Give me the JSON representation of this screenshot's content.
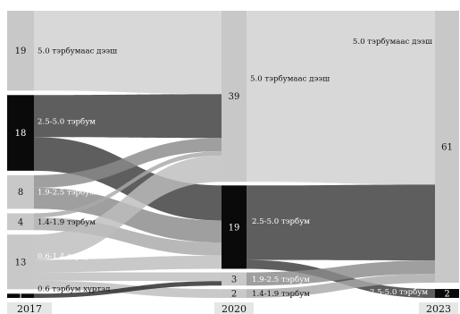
{
  "chart_data": {
    "type": "sankey",
    "title": "",
    "columns": [
      {
        "year": "2017",
        "nodes": [
          {
            "value": 19,
            "label": "5.0 тэрбумаас дээш"
          },
          {
            "value": 18,
            "label": "2.5-5.0 тэрбум"
          },
          {
            "value": 8,
            "label": "1.9-2.5 тэрбум"
          },
          {
            "value": 4,
            "label": "1.4-1.9 тэрбум"
          },
          {
            "value": 13,
            "label": "0.6-1.4 тэрбум"
          },
          {
            "value": 1,
            "label": "0.6 тэрбум хүртэл"
          }
        ]
      },
      {
        "year": "2020",
        "nodes": [
          {
            "value": 39,
            "label": "5.0 тэрбумаас дээш"
          },
          {
            "value": 19,
            "label": "2.5-5.0 тэрбум"
          },
          {
            "value": 3,
            "label": "1.9-2.5 тэрбум"
          },
          {
            "value": 2,
            "label": "1.4-1.9 тэрбум"
          }
        ]
      },
      {
        "year": "2023",
        "nodes": [
          {
            "value": 61,
            "label": "5.0 тэрбумаас дээш"
          },
          {
            "value": 2,
            "label": "2.5-5.0 тэрбум"
          }
        ]
      }
    ],
    "flows_2017_2020": [
      {
        "from": "5.0 тэрбумаас дээш",
        "to": "5.0 тэрбумаас дээш",
        "value": 19
      },
      {
        "from": "2.5-5.0 тэрбум",
        "to": "5.0 тэрбумаас дээш",
        "value": 10
      },
      {
        "from": "2.5-5.0 тэрбум",
        "to": "2.5-5.0 тэрбум",
        "value": 8
      },
      {
        "from": "1.9-2.5 тэрбум",
        "to": "5.0 тэрбумаас дээш",
        "value": 3
      },
      {
        "from": "1.9-2.5 тэрбум",
        "to": "2.5-5.0 тэрбум",
        "value": 5
      },
      {
        "from": "1.4-1.9 тэрбум",
        "to": "5.0 тэрбумаас дээш",
        "value": 1
      },
      {
        "from": "1.4-1.9 тэрбум",
        "to": "2.5-5.0 тэрбум",
        "value": 3
      },
      {
        "from": "0.6-1.4 тэрбум",
        "to": "5.0 тэрбумаас дээш",
        "value": 6
      },
      {
        "from": "0.6-1.4 тэрбум",
        "to": "2.5-5.0 тэрбум",
        "value": 3
      },
      {
        "from": "0.6-1.4 тэрбум",
        "to": "1.9-2.5 тэрбум",
        "value": 2
      },
      {
        "from": "0.6-1.4 тэрбум",
        "to": "1.4-1.9 тэрбум",
        "value": 2
      },
      {
        "from": "0.6 тэрбум хүртэл",
        "to": "1.9-2.5 тэрбум",
        "value": 1
      }
    ],
    "flows_2020_2023": [
      {
        "from": "5.0 тэрбумаас дээш",
        "to": "5.0 тэрбумаас дээш",
        "value": 39
      },
      {
        "from": "2.5-5.0 тэрбум",
        "to": "5.0 тэрбумаас дээш",
        "value": 17
      },
      {
        "from": "2.5-5.0 тэрбум",
        "to": "2.5-5.0 тэрбум",
        "value": 2
      },
      {
        "from": "1.9-2.5 тэрбум",
        "to": "5.0 тэрбумаас дээш",
        "value": 3
      },
      {
        "from": "1.4-1.9 тэрбум",
        "to": "5.0 тэрбумаас дээш",
        "value": 2
      }
    ],
    "colors": {
      "5.0 тэрбумаас дээш": "#d0d0d0",
      "2.5-5.0 тэрбум": "#3a3a3a",
      "1.9-2.5 тэрбум": "#8a8a8a",
      "1.4-1.9 тэрбум": "#a8a8a8",
      "0.6-1.4 тэрбум": "#bdbdbd",
      "0.6 тэрбум хүртэл": "#2a2a2a"
    }
  }
}
